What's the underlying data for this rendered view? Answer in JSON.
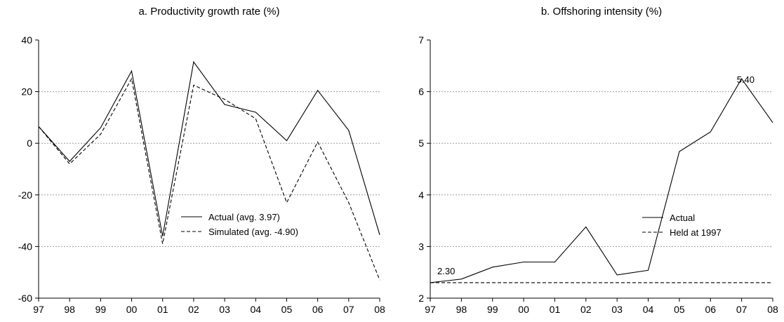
{
  "chart_data": [
    {
      "type": "line",
      "title": "a. Productivity growth rate (%)",
      "xlabel": "",
      "ylabel": "",
      "categories": [
        "97",
        "98",
        "99",
        "00",
        "01",
        "02",
        "03",
        "04",
        "05",
        "06",
        "07",
        "08"
      ],
      "ylim": [
        -60,
        40
      ],
      "yticks": [
        40,
        20,
        0,
        -20,
        -40,
        -60
      ],
      "grid": true,
      "legend_position": "center-right",
      "series": [
        {
          "name": "Actual (avg. 3.97)",
          "style": "solid",
          "values": [
            6.5,
            -7,
            6,
            28,
            -36,
            31.5,
            15,
            12,
            1,
            20.5,
            5,
            -35.5
          ]
        },
        {
          "name": "Simulated (avg. -4.90)",
          "style": "dashed",
          "values": [
            6.5,
            -8,
            3.5,
            25,
            -39,
            22.5,
            17,
            9.5,
            -23,
            0.5,
            -23,
            -53
          ]
        }
      ],
      "annotations": []
    },
    {
      "type": "line",
      "title": "b. Offshoring intensity (%)",
      "xlabel": "",
      "ylabel": "",
      "categories": [
        "97",
        "98",
        "99",
        "00",
        "01",
        "02",
        "03",
        "04",
        "05",
        "06",
        "07",
        "08"
      ],
      "ylim": [
        2,
        7
      ],
      "yticks": [
        7,
        6,
        5,
        4,
        3,
        2
      ],
      "grid": true,
      "legend_position": "center-right",
      "series": [
        {
          "name": "Actual",
          "style": "solid",
          "values": [
            2.3,
            2.37,
            2.6,
            2.7,
            2.7,
            3.38,
            2.45,
            2.54,
            4.84,
            5.22,
            6.25,
            5.4
          ]
        },
        {
          "name": "Held at 1997",
          "style": "dashed",
          "values": [
            2.3,
            2.3,
            2.3,
            2.3,
            2.3,
            2.3,
            2.3,
            2.3,
            2.3,
            2.3,
            2.3,
            2.3
          ]
        }
      ],
      "annotations": [
        {
          "text": "2.30",
          "x": "97",
          "y": 2.3
        },
        {
          "text": "5.40",
          "x": "08",
          "y": 5.4
        }
      ]
    }
  ]
}
